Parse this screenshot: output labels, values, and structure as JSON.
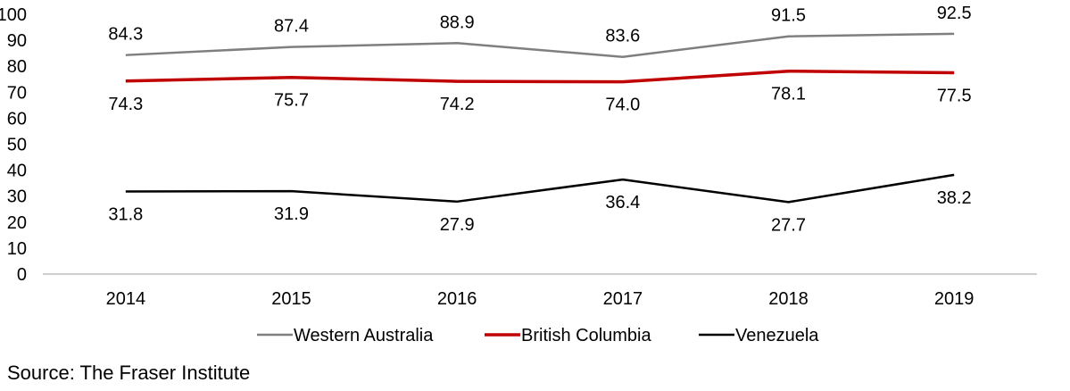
{
  "chart_data": {
    "type": "line",
    "categories": [
      "2014",
      "2015",
      "2016",
      "2017",
      "2018",
      "2019"
    ],
    "ylim": [
      0,
      100
    ],
    "yticks": [
      "0",
      "10",
      "20",
      "30",
      "40",
      "50",
      "60",
      "70",
      "80",
      "90",
      "100"
    ],
    "grid": false,
    "legend_position": "bottom",
    "series": [
      {
        "name": "Western Australia",
        "color": "#7f7f7f",
        "values": [
          84.3,
          87.4,
          88.9,
          83.6,
          91.5,
          92.5
        ],
        "labels": [
          "84.3",
          "87.4",
          "88.9",
          "83.6",
          "91.5",
          "92.5"
        ],
        "label_side": "above"
      },
      {
        "name": "British Columbia",
        "color": "#c00000",
        "values": [
          74.3,
          75.7,
          74.2,
          74.0,
          78.1,
          77.5
        ],
        "labels": [
          "74.3",
          "75.7",
          "74.2",
          "74.0",
          "78.1",
          "77.5"
        ],
        "label_side": "below"
      },
      {
        "name": "Venezuela",
        "color": "#000000",
        "values": [
          31.8,
          31.9,
          27.9,
          36.4,
          27.7,
          38.2
        ],
        "labels": [
          "31.8",
          "31.9",
          "27.9",
          "36.4",
          "27.7",
          "38.2"
        ],
        "label_side": "below"
      }
    ]
  },
  "source": "Source: The Fraser Institute"
}
